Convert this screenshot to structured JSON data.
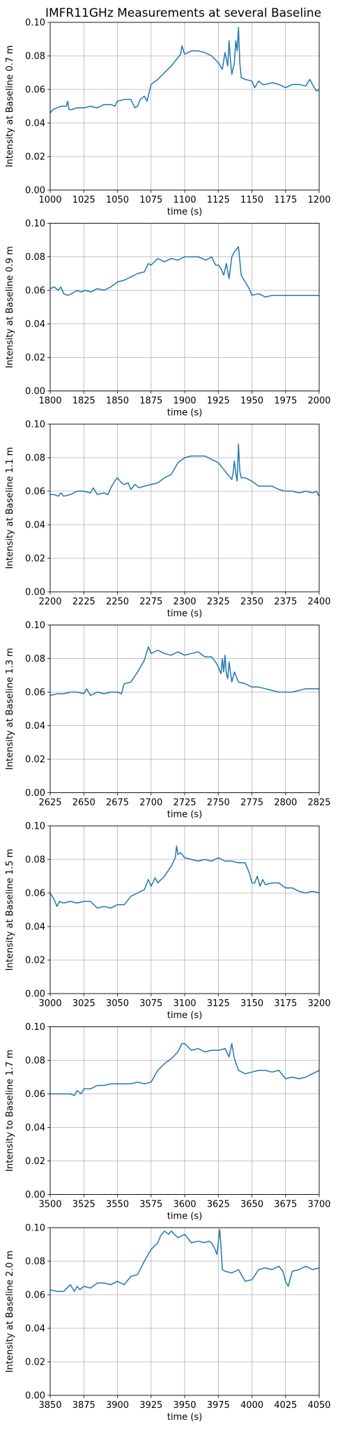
{
  "figure": {
    "title": "IMFR11GHz Measurements at several Baseline",
    "line_color": "#1f77b4",
    "grid_color": "#b0b0b0"
  },
  "chart_data": [
    {
      "type": "line",
      "xlabel": "time (s)",
      "ylabel": "Intensity at Baseline 0.7 m",
      "xlim": [
        1000,
        1200
      ],
      "ylim": [
        0,
        0.1
      ],
      "xticks": [
        1000,
        1025,
        1050,
        1075,
        1100,
        1125,
        1150,
        1175,
        1200
      ],
      "yticks": [
        "0.00",
        "0.02",
        "0.04",
        "0.06",
        "0.08",
        "0.10"
      ],
      "grid": true,
      "x": [
        1000,
        1002,
        1005,
        1008,
        1012,
        1013,
        1014,
        1016,
        1020,
        1025,
        1030,
        1035,
        1040,
        1045,
        1048,
        1050,
        1055,
        1060,
        1063,
        1065,
        1067,
        1070,
        1072,
        1075,
        1080,
        1085,
        1090,
        1095,
        1097,
        1098,
        1100,
        1105,
        1110,
        1115,
        1120,
        1125,
        1128,
        1130,
        1132,
        1133,
        1134,
        1135,
        1137,
        1138,
        1139,
        1140,
        1141,
        1142,
        1145,
        1150,
        1152,
        1155,
        1158,
        1160,
        1165,
        1170,
        1175,
        1180,
        1185,
        1190,
        1193,
        1195,
        1198,
        1200
      ],
      "y": [
        0.046,
        0.048,
        0.049,
        0.05,
        0.05,
        0.053,
        0.048,
        0.048,
        0.049,
        0.049,
        0.05,
        0.049,
        0.051,
        0.051,
        0.05,
        0.053,
        0.054,
        0.054,
        0.049,
        0.05,
        0.054,
        0.056,
        0.053,
        0.063,
        0.066,
        0.07,
        0.074,
        0.079,
        0.081,
        0.086,
        0.081,
        0.083,
        0.083,
        0.082,
        0.08,
        0.076,
        0.072,
        0.082,
        0.074,
        0.089,
        0.078,
        0.069,
        0.076,
        0.089,
        0.083,
        0.097,
        0.076,
        0.067,
        0.066,
        0.065,
        0.061,
        0.065,
        0.063,
        0.063,
        0.064,
        0.063,
        0.061,
        0.063,
        0.063,
        0.062,
        0.066,
        0.063,
        0.059,
        0.06
      ]
    },
    {
      "type": "line",
      "xlabel": "time (s)",
      "ylabel": "Intensity at Baseline 0.9 m",
      "xlim": [
        1800,
        2000
      ],
      "ylim": [
        0,
        0.1
      ],
      "xticks": [
        1800,
        1825,
        1850,
        1875,
        1900,
        1925,
        1950,
        1975,
        2000
      ],
      "yticks": [
        "0.00",
        "0.02",
        "0.04",
        "0.06",
        "0.08",
        "0.10"
      ],
      "grid": true,
      "x": [
        1800,
        1803,
        1806,
        1808,
        1810,
        1813,
        1816,
        1820,
        1823,
        1826,
        1830,
        1835,
        1840,
        1845,
        1850,
        1855,
        1860,
        1865,
        1870,
        1873,
        1875,
        1880,
        1885,
        1890,
        1895,
        1900,
        1905,
        1910,
        1913,
        1916,
        1920,
        1923,
        1925,
        1927,
        1929,
        1931,
        1933,
        1935,
        1937,
        1940,
        1942,
        1945,
        1948,
        1950,
        1955,
        1960,
        1965,
        1970,
        1975,
        1980,
        1985,
        1990,
        1995,
        2000
      ],
      "y": [
        0.061,
        0.062,
        0.06,
        0.062,
        0.058,
        0.057,
        0.058,
        0.06,
        0.059,
        0.06,
        0.059,
        0.061,
        0.06,
        0.062,
        0.065,
        0.066,
        0.068,
        0.07,
        0.071,
        0.076,
        0.075,
        0.079,
        0.077,
        0.079,
        0.078,
        0.08,
        0.08,
        0.08,
        0.079,
        0.078,
        0.08,
        0.075,
        0.075,
        0.073,
        0.069,
        0.076,
        0.067,
        0.08,
        0.083,
        0.086,
        0.069,
        0.065,
        0.061,
        0.057,
        0.058,
        0.056,
        0.057,
        0.057,
        0.057,
        0.057,
        0.057,
        0.057,
        0.057,
        0.057
      ]
    },
    {
      "type": "line",
      "xlabel": "time (s)",
      "ylabel": "Intensity at Baseline 1.1 m",
      "xlim": [
        2200,
        2400
      ],
      "ylim": [
        0,
        0.1
      ],
      "xticks": [
        2200,
        2225,
        2250,
        2275,
        2300,
        2325,
        2350,
        2375,
        2400
      ],
      "yticks": [
        "0.00",
        "0.02",
        "0.04",
        "0.06",
        "0.08",
        "0.10"
      ],
      "grid": true,
      "x": [
        2200,
        2203,
        2206,
        2208,
        2210,
        2215,
        2220,
        2225,
        2230,
        2232,
        2235,
        2240,
        2243,
        2245,
        2248,
        2250,
        2253,
        2255,
        2258,
        2260,
        2263,
        2266,
        2270,
        2275,
        2280,
        2285,
        2290,
        2295,
        2300,
        2305,
        2310,
        2315,
        2320,
        2325,
        2330,
        2333,
        2335,
        2336,
        2337,
        2338,
        2339,
        2340,
        2341,
        2342,
        2343,
        2345,
        2350,
        2355,
        2360,
        2365,
        2370,
        2375,
        2380,
        2385,
        2390,
        2395,
        2398,
        2400
      ],
      "y": [
        0.058,
        0.058,
        0.057,
        0.059,
        0.057,
        0.058,
        0.06,
        0.06,
        0.059,
        0.062,
        0.058,
        0.059,
        0.058,
        0.062,
        0.066,
        0.068,
        0.065,
        0.064,
        0.065,
        0.061,
        0.064,
        0.062,
        0.063,
        0.064,
        0.065,
        0.068,
        0.07,
        0.077,
        0.08,
        0.081,
        0.081,
        0.081,
        0.079,
        0.077,
        0.072,
        0.069,
        0.067,
        0.071,
        0.078,
        0.071,
        0.066,
        0.088,
        0.072,
        0.068,
        0.068,
        0.068,
        0.066,
        0.063,
        0.063,
        0.063,
        0.061,
        0.06,
        0.06,
        0.059,
        0.06,
        0.059,
        0.06,
        0.057
      ]
    },
    {
      "type": "line",
      "xlabel": "time (s)",
      "ylabel": "Intensity at Baseline 1.3 m",
      "xlim": [
        2625,
        2825
      ],
      "ylim": [
        0,
        0.1
      ],
      "xticks": [
        2625,
        2650,
        2675,
        2700,
        2725,
        2750,
        2775,
        2800,
        2825
      ],
      "yticks": [
        "0.00",
        "0.02",
        "0.04",
        "0.06",
        "0.08",
        "0.10"
      ],
      "grid": true,
      "x": [
        2625,
        2630,
        2635,
        2640,
        2645,
        2650,
        2652,
        2655,
        2660,
        2665,
        2670,
        2675,
        2678,
        2680,
        2685,
        2690,
        2695,
        2698,
        2700,
        2705,
        2710,
        2715,
        2720,
        2725,
        2730,
        2735,
        2740,
        2745,
        2748,
        2750,
        2752,
        2753,
        2754,
        2755,
        2756,
        2757,
        2758,
        2760,
        2762,
        2765,
        2770,
        2775,
        2780,
        2785,
        2790,
        2795,
        2800,
        2805,
        2810,
        2815,
        2820,
        2825
      ],
      "y": [
        0.058,
        0.059,
        0.059,
        0.06,
        0.06,
        0.059,
        0.062,
        0.058,
        0.06,
        0.059,
        0.06,
        0.06,
        0.059,
        0.065,
        0.066,
        0.072,
        0.079,
        0.087,
        0.083,
        0.085,
        0.083,
        0.082,
        0.084,
        0.082,
        0.083,
        0.084,
        0.081,
        0.081,
        0.078,
        0.075,
        0.071,
        0.08,
        0.072,
        0.082,
        0.071,
        0.068,
        0.078,
        0.066,
        0.072,
        0.066,
        0.065,
        0.063,
        0.063,
        0.062,
        0.061,
        0.06,
        0.06,
        0.06,
        0.061,
        0.062,
        0.062,
        0.062
      ]
    },
    {
      "type": "line",
      "xlabel": "time (s)",
      "ylabel": "Intensity at Baseline 1.5 m",
      "xlim": [
        3000,
        3200
      ],
      "ylim": [
        0,
        0.1
      ],
      "xticks": [
        3000,
        3025,
        3050,
        3075,
        3100,
        3125,
        3150,
        3175,
        3200
      ],
      "yticks": [
        "0.00",
        "0.02",
        "0.04",
        "0.06",
        "0.08",
        "0.10"
      ],
      "grid": true,
      "x": [
        3000,
        3003,
        3005,
        3007,
        3010,
        3015,
        3020,
        3025,
        3030,
        3035,
        3040,
        3045,
        3050,
        3055,
        3060,
        3065,
        3070,
        3073,
        3075,
        3078,
        3080,
        3085,
        3090,
        3093,
        3094,
        3095,
        3097,
        3100,
        3105,
        3110,
        3115,
        3120,
        3125,
        3130,
        3135,
        3140,
        3145,
        3148,
        3150,
        3152,
        3154,
        3156,
        3158,
        3160,
        3165,
        3170,
        3175,
        3180,
        3185,
        3190,
        3195,
        3200
      ],
      "y": [
        0.06,
        0.056,
        0.052,
        0.055,
        0.054,
        0.055,
        0.054,
        0.055,
        0.055,
        0.051,
        0.052,
        0.051,
        0.053,
        0.053,
        0.058,
        0.06,
        0.062,
        0.068,
        0.064,
        0.069,
        0.066,
        0.07,
        0.076,
        0.081,
        0.088,
        0.083,
        0.084,
        0.081,
        0.08,
        0.079,
        0.08,
        0.079,
        0.081,
        0.079,
        0.079,
        0.078,
        0.078,
        0.072,
        0.066,
        0.066,
        0.07,
        0.064,
        0.068,
        0.065,
        0.066,
        0.066,
        0.063,
        0.063,
        0.061,
        0.06,
        0.061,
        0.06
      ]
    },
    {
      "type": "line",
      "xlabel": "time (s)",
      "ylabel": "Intensity to Baseline 1.7 m",
      "xlim": [
        3500,
        3700
      ],
      "ylim": [
        0,
        0.1
      ],
      "xticks": [
        3500,
        3525,
        3550,
        3575,
        3600,
        3625,
        3650,
        3675,
        3700
      ],
      "yticks": [
        "0.00",
        "0.02",
        "0.04",
        "0.06",
        "0.08",
        "0.10"
      ],
      "grid": true,
      "x": [
        3500,
        3505,
        3510,
        3515,
        3518,
        3520,
        3523,
        3525,
        3530,
        3535,
        3540,
        3545,
        3550,
        3555,
        3560,
        3565,
        3570,
        3575,
        3580,
        3585,
        3590,
        3595,
        3598,
        3600,
        3605,
        3610,
        3615,
        3620,
        3625,
        3630,
        3633,
        3635,
        3637,
        3640,
        3645,
        3650,
        3655,
        3660,
        3665,
        3670,
        3675,
        3680,
        3685,
        3690,
        3695,
        3700
      ],
      "y": [
        0.06,
        0.06,
        0.06,
        0.06,
        0.059,
        0.062,
        0.06,
        0.063,
        0.063,
        0.065,
        0.065,
        0.066,
        0.066,
        0.066,
        0.066,
        0.067,
        0.066,
        0.067,
        0.074,
        0.078,
        0.081,
        0.085,
        0.09,
        0.09,
        0.086,
        0.087,
        0.085,
        0.086,
        0.086,
        0.087,
        0.082,
        0.09,
        0.081,
        0.074,
        0.072,
        0.073,
        0.074,
        0.074,
        0.073,
        0.074,
        0.069,
        0.07,
        0.069,
        0.07,
        0.072,
        0.074
      ]
    },
    {
      "type": "line",
      "xlabel": "time (s)",
      "ylabel": "Intensity at Baseline 2.0 m",
      "xlim": [
        3850,
        4050
      ],
      "ylim": [
        0,
        0.1
      ],
      "xticks": [
        3850,
        3875,
        3900,
        3925,
        3950,
        3975,
        4000,
        4025,
        4050
      ],
      "yticks": [
        "0.00",
        "0.02",
        "0.04",
        "0.06",
        "0.08",
        "0.10"
      ],
      "grid": true,
      "x": [
        3850,
        3855,
        3860,
        3865,
        3868,
        3870,
        3872,
        3875,
        3880,
        3885,
        3890,
        3895,
        3900,
        3905,
        3910,
        3915,
        3920,
        3925,
        3930,
        3932,
        3935,
        3938,
        3940,
        3945,
        3950,
        3955,
        3960,
        3965,
        3968,
        3970,
        3972,
        3974,
        3976,
        3977,
        3978,
        3980,
        3985,
        3990,
        3995,
        4000,
        4005,
        4010,
        4015,
        4020,
        4023,
        4025,
        4027,
        4030,
        4035,
        4040,
        4045,
        4050
      ],
      "y": [
        0.063,
        0.062,
        0.062,
        0.066,
        0.062,
        0.065,
        0.063,
        0.065,
        0.064,
        0.067,
        0.067,
        0.066,
        0.068,
        0.066,
        0.071,
        0.072,
        0.08,
        0.087,
        0.091,
        0.095,
        0.098,
        0.096,
        0.098,
        0.094,
        0.096,
        0.091,
        0.092,
        0.091,
        0.092,
        0.091,
        0.088,
        0.084,
        0.099,
        0.089,
        0.075,
        0.074,
        0.073,
        0.075,
        0.068,
        0.069,
        0.075,
        0.076,
        0.075,
        0.077,
        0.074,
        0.068,
        0.065,
        0.074,
        0.075,
        0.077,
        0.075,
        0.076
      ]
    }
  ]
}
